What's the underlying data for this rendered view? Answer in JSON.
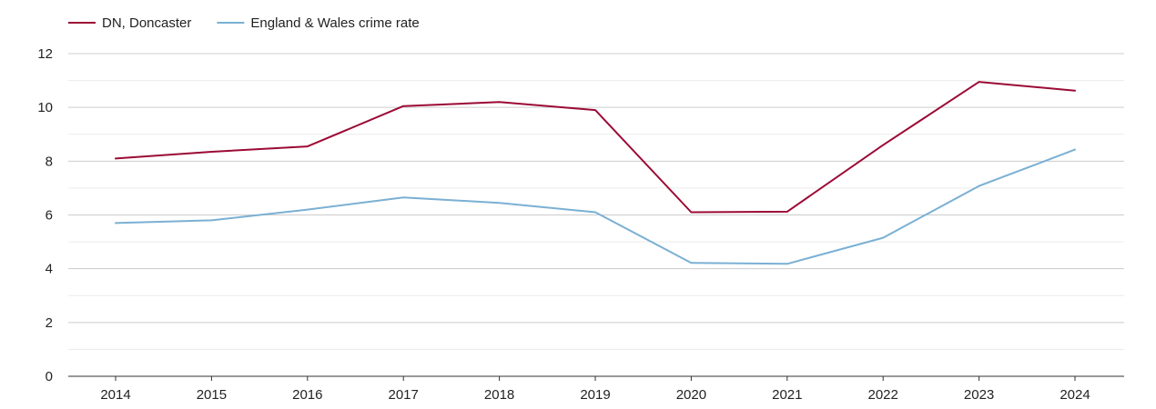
{
  "chart_data": {
    "type": "line",
    "title": "",
    "xlabel": "",
    "ylabel": "",
    "categories": [
      "2014",
      "2015",
      "2016",
      "2017",
      "2018",
      "2019",
      "2020",
      "2021",
      "2022",
      "2023",
      "2024"
    ],
    "ylim": [
      0,
      12
    ],
    "yticks": [
      0,
      2,
      4,
      6,
      8,
      10,
      12
    ],
    "grid": true,
    "legend_position": "top-left",
    "series": [
      {
        "name": "DN, Doncaster",
        "color": "#9b0a35",
        "values": [
          8.1,
          8.35,
          8.55,
          10.05,
          10.2,
          9.9,
          6.1,
          6.12,
          8.6,
          10.95,
          10.62
        ]
      },
      {
        "name": "England & Wales crime rate",
        "color": "#7ab0d4",
        "values": [
          5.7,
          5.8,
          6.2,
          6.65,
          6.45,
          6.1,
          4.22,
          4.18,
          5.15,
          7.08,
          8.43
        ]
      }
    ]
  }
}
